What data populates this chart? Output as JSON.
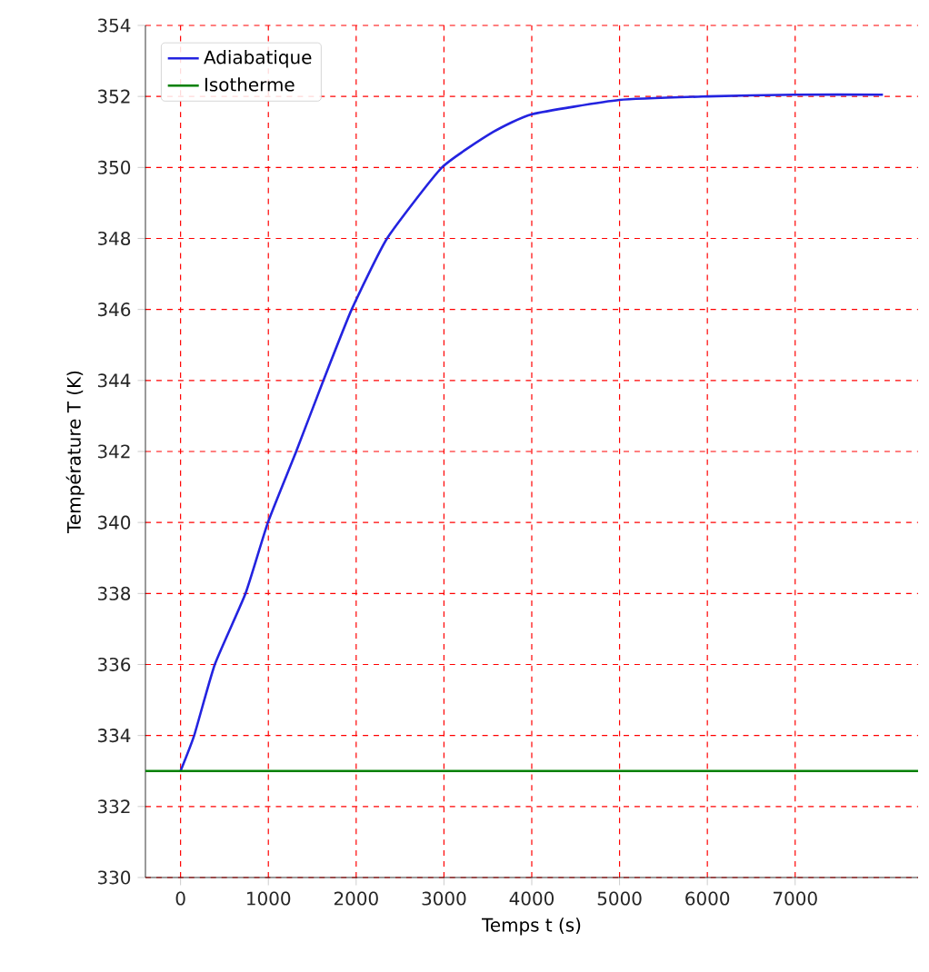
{
  "chart_data": {
    "type": "line",
    "xlabel": "Temps t (s)",
    "ylabel": "Température T (K)",
    "xlim": [
      -400,
      8400
    ],
    "xticks": [
      0,
      1000,
      2000,
      3000,
      4000,
      5000,
      6000,
      7000
    ],
    "ylim": [
      330,
      354
    ],
    "yticks": [
      330,
      332,
      334,
      336,
      338,
      340,
      342,
      344,
      346,
      348,
      350,
      352,
      354
    ],
    "grid": true,
    "legend": "top left",
    "series": [
      {
        "name": "Adiabatique",
        "color": "#2323e0",
        "x": [
          0,
          155,
          390,
          740,
          995,
          1317,
          1627,
          1949,
          2352,
          2977,
          3562,
          4004,
          5000,
          6000,
          7000,
          8000
        ],
        "values": [
          333,
          334,
          336,
          338,
          340,
          342,
          344,
          346,
          348,
          350,
          351,
          351.5,
          351.9,
          352,
          352.05,
          352.05
        ]
      },
      {
        "name": "Isotherme",
        "color": "#008000",
        "x": [
          -400,
          8400
        ],
        "values": [
          333,
          333
        ]
      }
    ]
  }
}
